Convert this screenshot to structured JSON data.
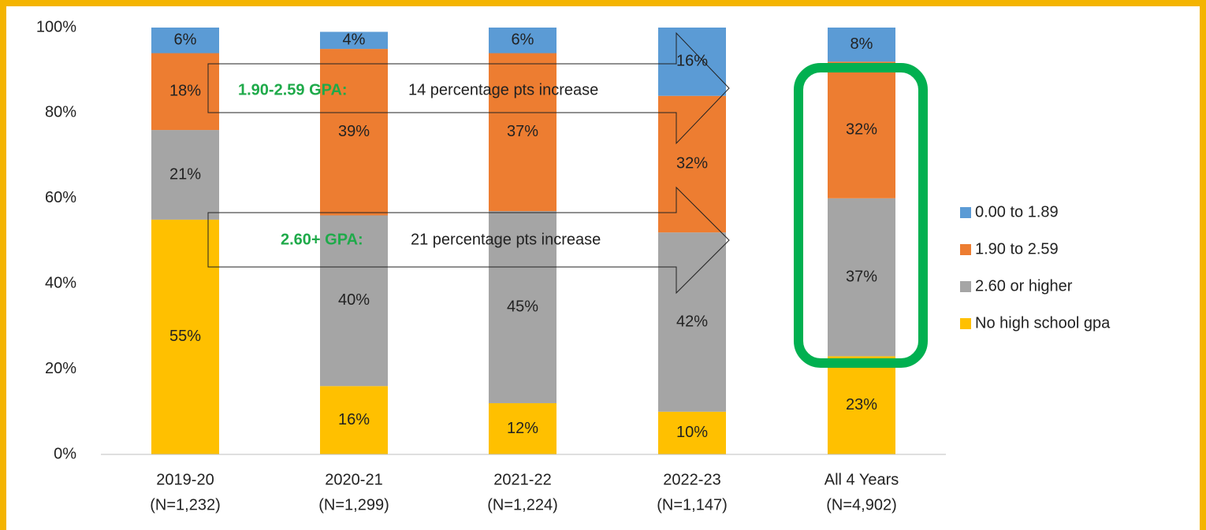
{
  "chart_data": {
    "type": "stacked_bar",
    "categories": [
      [
        "2019-20",
        "(N=1,232)"
      ],
      [
        "2020-21",
        "(N=1,299)"
      ],
      [
        "2021-22",
        "(N=1,224)"
      ],
      [
        "2022-23",
        "(N=1,147)"
      ],
      [
        "All 4 Years",
        "(N=4,902)"
      ]
    ],
    "series": [
      {
        "name": "No high school gpa",
        "color": "#ffc000",
        "values": [
          55,
          16,
          12,
          10,
          23
        ],
        "value_labels": [
          "55%",
          "16%",
          "12%",
          "10%",
          "23%"
        ]
      },
      {
        "name": "2.60 or higher",
        "color": "#a5a5a5",
        "values": [
          21,
          40,
          45,
          42,
          37
        ],
        "value_labels": [
          "21%",
          "40%",
          "45%",
          "42%",
          "37%"
        ]
      },
      {
        "name": "1.90 to 2.59",
        "color": "#ed7d31",
        "values": [
          18,
          39,
          37,
          32,
          32
        ],
        "value_labels": [
          "18%",
          "39%",
          "37%",
          "32%",
          "32%"
        ]
      },
      {
        "name": "0.00 to 1.89",
        "color": "#5b9bd5",
        "values": [
          6,
          4,
          6,
          16,
          8
        ],
        "value_labels": [
          "6%",
          "4%",
          "6%",
          "16%",
          "8%"
        ]
      }
    ],
    "ylim": [
      0,
      100
    ],
    "yticks": [
      {
        "value": 0,
        "label": "0%"
      },
      {
        "value": 20,
        "label": "20%"
      },
      {
        "value": 40,
        "label": "40%"
      },
      {
        "value": 60,
        "label": "60%"
      },
      {
        "value": 80,
        "label": "80%"
      },
      {
        "value": 100,
        "label": "100%"
      }
    ],
    "legend": "right",
    "annotations": [
      {
        "label": "1.90-2.59 GPA:",
        "text": "14 percentage pts increase"
      },
      {
        "label": "2.60+ GPA:",
        "text": "21 percentage pts increase"
      }
    ]
  }
}
